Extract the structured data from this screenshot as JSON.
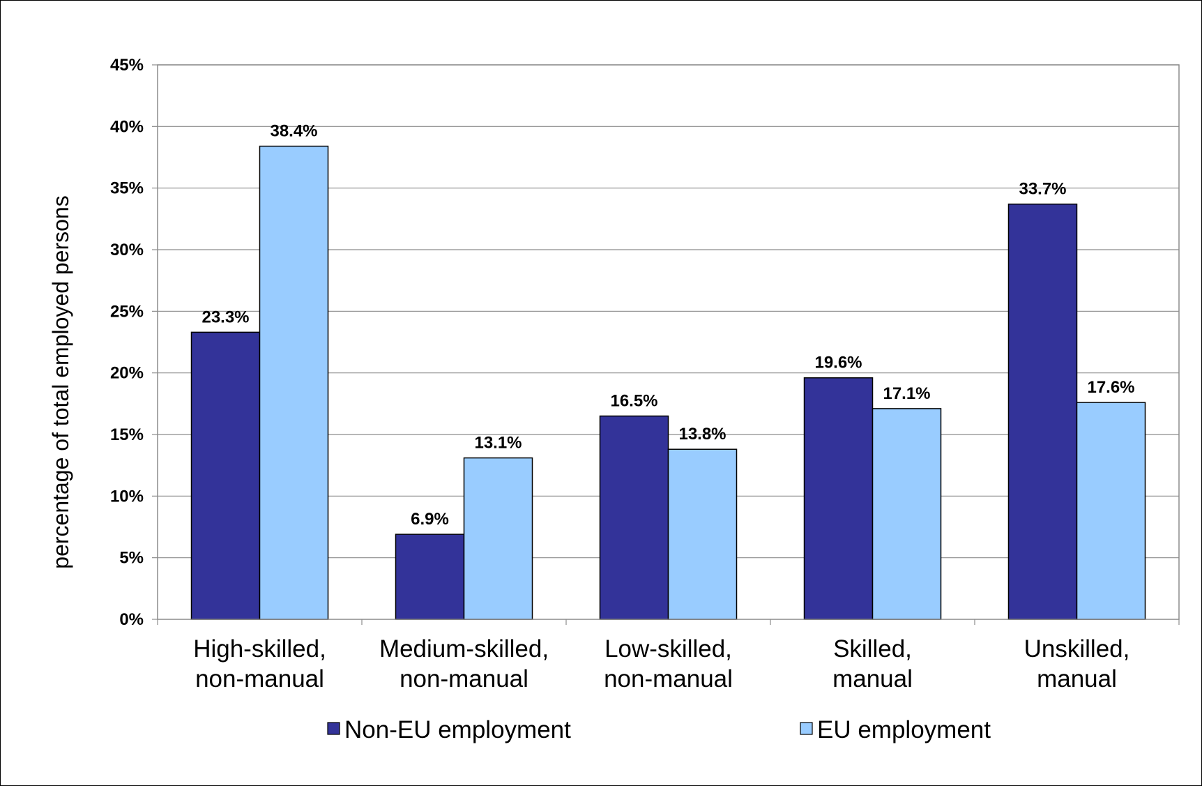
{
  "chart_data": {
    "type": "bar",
    "title": "",
    "xlabel": "",
    "ylabel": "percentage of total employed persons",
    "ylim": [
      0,
      45
    ],
    "yticks": [
      "0%",
      "5%",
      "10%",
      "15%",
      "20%",
      "25%",
      "30%",
      "35%",
      "40%",
      "45%"
    ],
    "grid": true,
    "legend_position": "bottom",
    "categories": [
      [
        "High-skilled,",
        "non-manual"
      ],
      [
        "Medium-skilled,",
        "non-manual"
      ],
      [
        "Low-skilled,",
        "non-manual"
      ],
      [
        "Skilled,",
        "manual"
      ],
      [
        "Unskilled,",
        "manual"
      ]
    ],
    "series": [
      {
        "name": "Non-EU employment",
        "color": "#333399",
        "values": [
          23.3,
          6.9,
          16.5,
          19.6,
          33.7
        ],
        "labels": [
          "23.3%",
          "6.9%",
          "16.5%",
          "19.6%",
          "33.7%"
        ]
      },
      {
        "name": "EU employment",
        "color": "#99CCFF",
        "values": [
          38.4,
          13.1,
          13.8,
          17.1,
          17.6
        ],
        "labels": [
          "38.4%",
          "13.1%",
          "13.8%",
          "17.1%",
          "17.6%"
        ]
      }
    ]
  }
}
